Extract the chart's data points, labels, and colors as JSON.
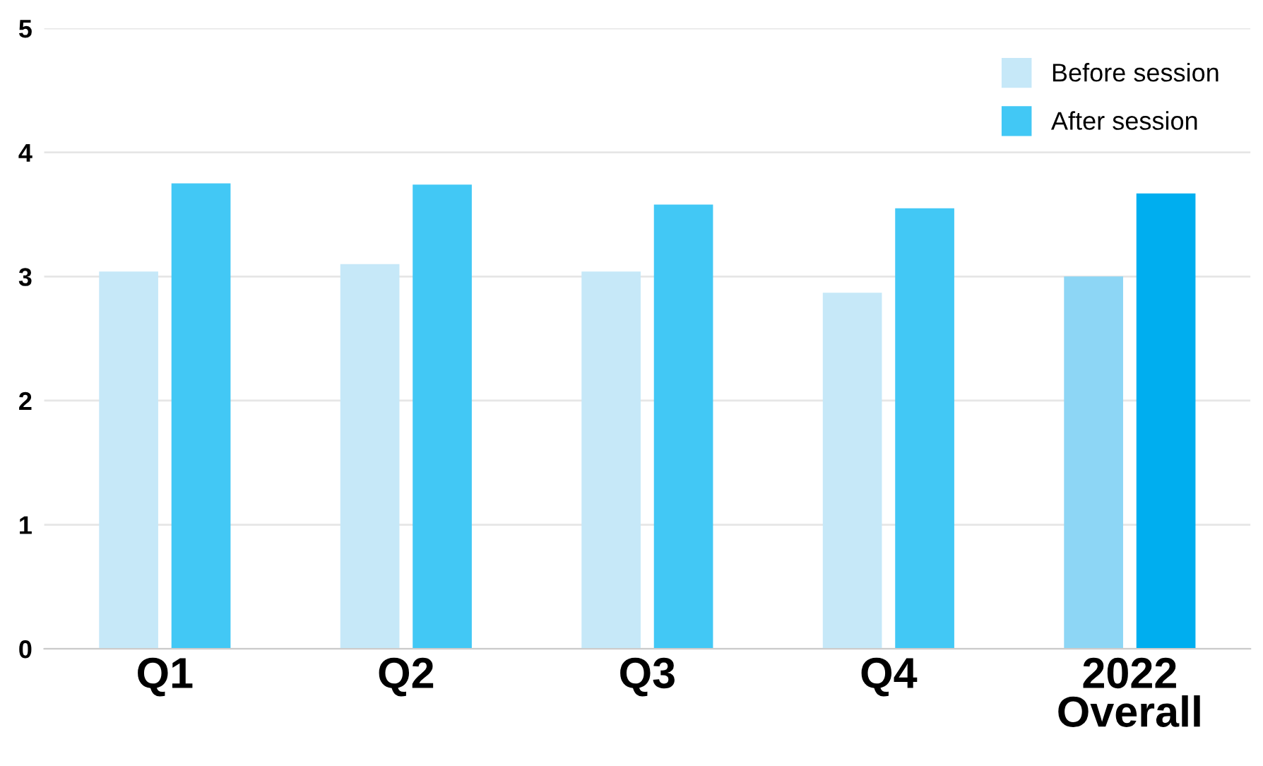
{
  "chart_data": {
    "type": "bar",
    "categories": [
      "Q1",
      "Q2",
      "Q3",
      "Q4",
      "2022\nOverall"
    ],
    "series": [
      {
        "name": "Before session",
        "color": "#c6e8f8",
        "colors": [
          "#c6e8f8",
          "#c6e8f8",
          "#c6e8f8",
          "#c6e8f8",
          "#8dd6f5"
        ],
        "values": [
          3.04,
          3.1,
          3.04,
          2.87,
          3.0
        ]
      },
      {
        "name": "After session",
        "color": "#42c8f5",
        "colors": [
          "#42c8f5",
          "#42c8f5",
          "#42c8f5",
          "#42c8f5",
          "#00aeef"
        ],
        "values": [
          3.75,
          3.74,
          3.58,
          3.55,
          3.67
        ]
      }
    ],
    "ylim": [
      0,
      5
    ],
    "yticks": [
      0,
      1,
      2,
      3,
      4,
      5
    ],
    "grid": "y",
    "legend": "top right"
  }
}
